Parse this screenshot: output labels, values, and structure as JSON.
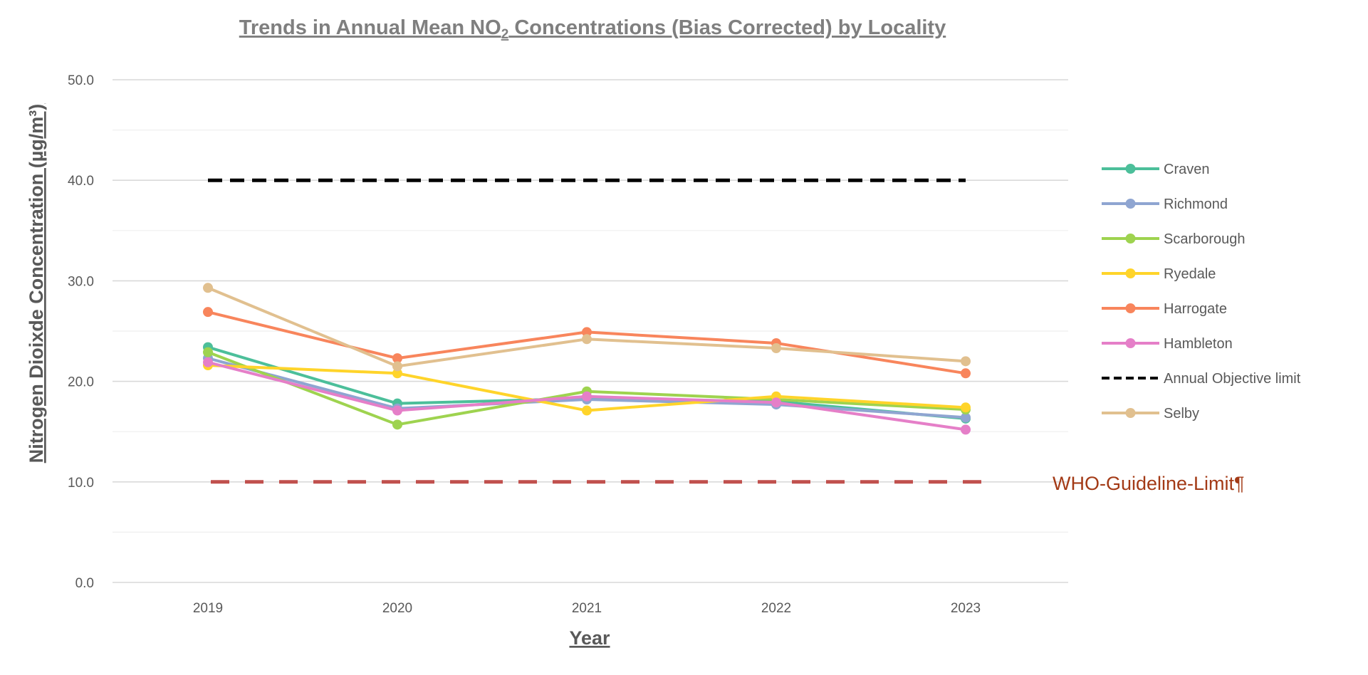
{
  "chart_data": {
    "type": "line",
    "title_main": "Trends in Annual Mean NO",
    "title_sub": "2",
    "title_rest": " Concentrations (Bias Corrected) by Locality",
    "xlabel": "Year",
    "ylabel": "Nitrogen Dioixde Concentration (µg/m³)",
    "categories": [
      "2019",
      "2020",
      "2021",
      "2022",
      "2023"
    ],
    "ylim": [
      0,
      50
    ],
    "yticks": [
      0,
      10,
      20,
      30,
      40,
      50
    ],
    "ytick_labels": [
      "0.0",
      "10.0",
      "20.0",
      "30.0",
      "40.0",
      "50.0"
    ],
    "grid": "horizontal",
    "legend_position": "right",
    "series": [
      {
        "name": "Craven",
        "color": "#4cbf9a",
        "values": [
          23.4,
          17.8,
          18.3,
          18.0,
          16.3
        ]
      },
      {
        "name": "Richmond",
        "color": "#8fa5d1",
        "values": [
          22.3,
          17.3,
          18.2,
          17.7,
          16.4
        ]
      },
      {
        "name": "Scarborough",
        "color": "#9ed34f",
        "values": [
          22.9,
          15.7,
          19.0,
          18.2,
          17.2
        ]
      },
      {
        "name": "Ryedale",
        "color": "#ffd42a",
        "values": [
          21.6,
          20.8,
          17.1,
          18.5,
          17.4
        ]
      },
      {
        "name": "Harrogate",
        "color": "#f8855c",
        "values": [
          26.9,
          22.3,
          24.9,
          23.8,
          20.8
        ]
      },
      {
        "name": "Hambleton",
        "color": "#e57fc8",
        "values": [
          21.9,
          17.1,
          18.5,
          17.9,
          15.2
        ]
      },
      {
        "name": "Annual Objective limit",
        "color": "#000000",
        "dashed": true,
        "values": [
          40,
          40,
          40,
          40,
          40
        ]
      },
      {
        "name": "Selby",
        "color": "#e1c08f",
        "values": [
          29.3,
          21.5,
          24.2,
          23.3,
          22.0
        ]
      }
    ],
    "annotations": [
      {
        "text": "WHO-Guideline-Limit¶",
        "color": "#c0504d",
        "line_value": 10
      }
    ]
  }
}
